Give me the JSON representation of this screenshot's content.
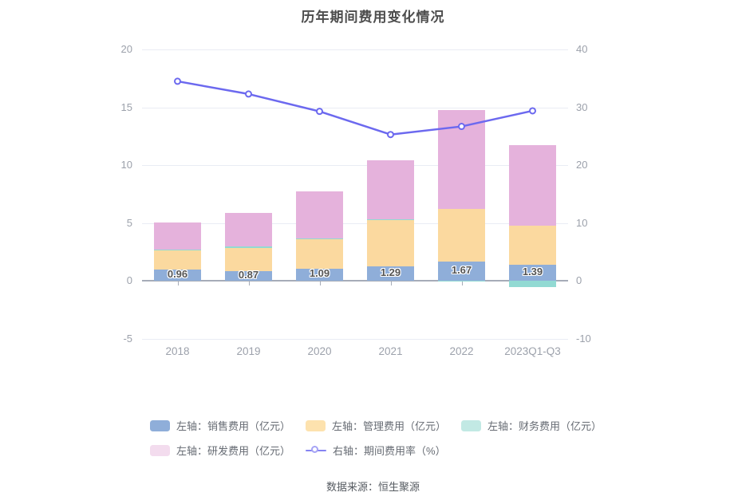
{
  "title": "历年期间费用变化情况",
  "footer": "数据来源：恒生聚源",
  "colors": {
    "sales": "#8faed9",
    "admin": "#fbd99f",
    "finance": "#92dad3",
    "rd": "#e5b2dc",
    "line": "#6c69ef",
    "grid": "#e9ecf4",
    "zero_axis": "#a6acb8",
    "tick_label": "#9ca1ab",
    "legend_sales": "#8faed9",
    "legend_admin": "#fde2ae",
    "legend_finance": "#c2e9e4",
    "legend_rd": "#f3dcee"
  },
  "chart_data": {
    "type": "bar",
    "subtype": "stacked-bars-with-line",
    "title": "历年期间费用变化情况",
    "categories": [
      "2018",
      "2019",
      "2020",
      "2021",
      "2022",
      "2023Q1-Q3"
    ],
    "series": [
      {
        "name": "左轴：销售费用（亿元）",
        "type": "bar",
        "color_key": "sales",
        "values": [
          0.96,
          0.87,
          1.09,
          1.29,
          1.67,
          1.39
        ]
      },
      {
        "name": "左轴：管理费用（亿元）",
        "type": "bar",
        "color_key": "admin",
        "values": [
          1.75,
          1.95,
          2.5,
          3.95,
          4.55,
          3.38
        ]
      },
      {
        "name": "左轴：财务费用（亿元）",
        "type": "bar",
        "color_key": "finance",
        "values": [
          0.02,
          0.18,
          0.08,
          0.12,
          -0.06,
          -0.53
        ]
      },
      {
        "name": "左轴：研发费用（亿元）",
        "type": "bar",
        "color_key": "rd",
        "values": [
          2.3,
          2.85,
          4.1,
          5.08,
          8.57,
          6.97
        ]
      },
      {
        "name": "右轴：期间费用率（%）",
        "type": "line",
        "color_key": "line",
        "axis": "right",
        "values": [
          34.5,
          32.3,
          29.3,
          25.3,
          26.7,
          29.4
        ]
      }
    ],
    "bar_labels": [
      "0.96",
      "0.87",
      "1.09",
      "1.29",
      "1.67",
      "1.39"
    ],
    "left_axis": {
      "min": -5,
      "max": 20,
      "ticks": [
        20,
        15,
        10,
        5,
        0,
        -5
      ]
    },
    "right_axis": {
      "min": -10,
      "max": 40,
      "ticks": [
        40,
        30,
        20,
        10,
        0,
        -10
      ]
    },
    "grid": true,
    "legend_position": "bottom"
  }
}
